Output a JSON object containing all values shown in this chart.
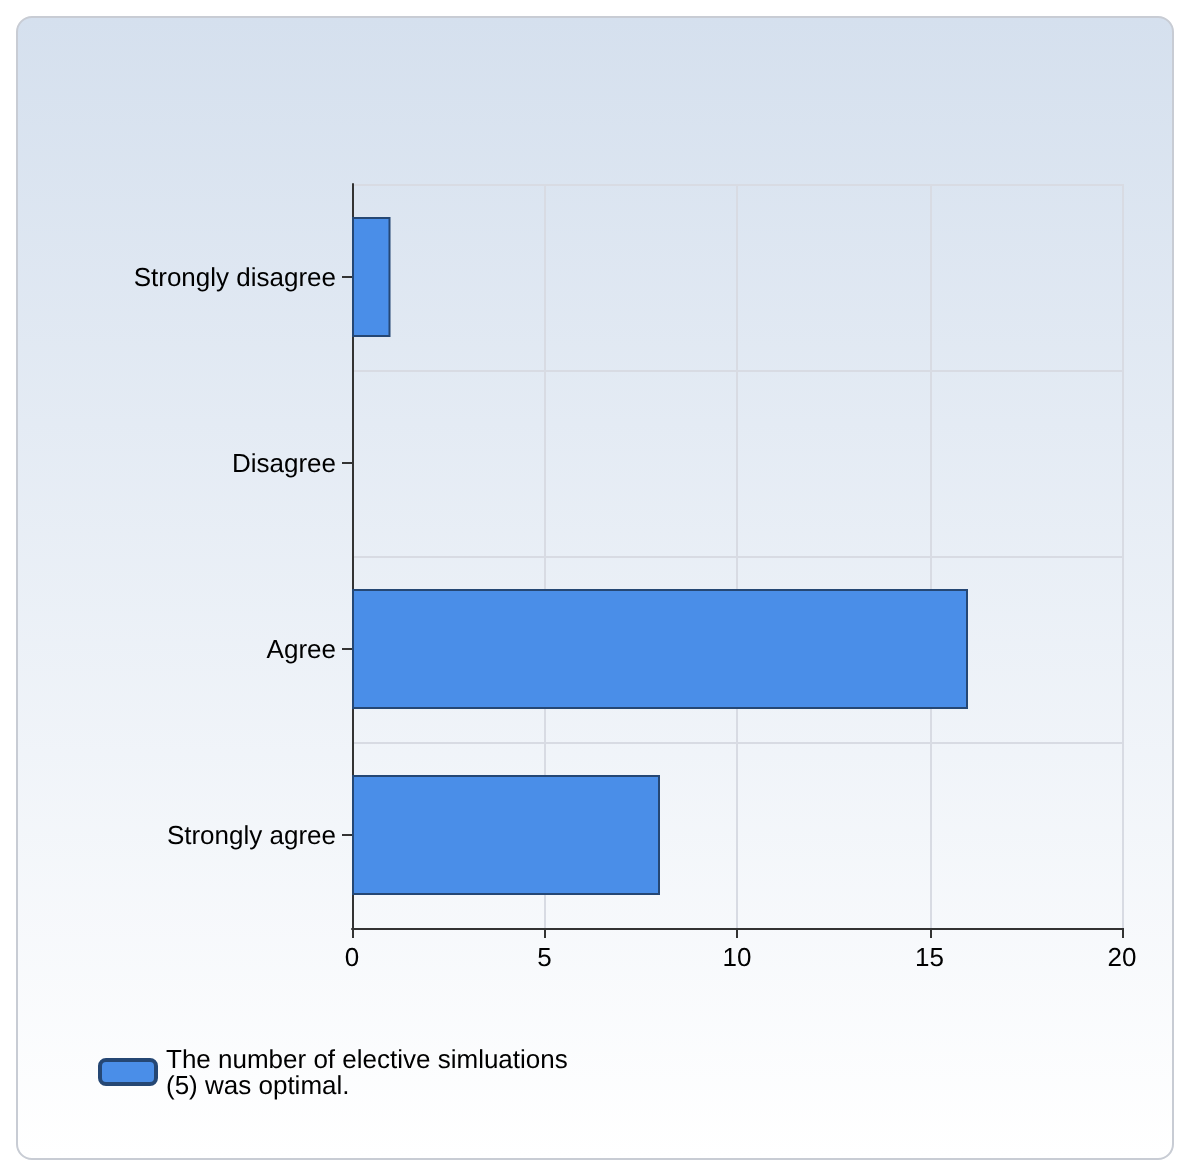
{
  "chart_data": {
    "type": "bar",
    "orientation": "horizontal",
    "categories": [
      "Strongly disagree",
      "Disagree",
      "Agree",
      "Strongly agree"
    ],
    "series": [
      {
        "name": "The number of elective simluations (5) was optimal.",
        "color": "#4a8ee8",
        "values": [
          1,
          0,
          16,
          8
        ]
      }
    ],
    "xlim": [
      0,
      20
    ],
    "xticks": [
      0,
      5,
      10,
      15,
      20
    ],
    "grid": true,
    "legend": "bottom left"
  }
}
